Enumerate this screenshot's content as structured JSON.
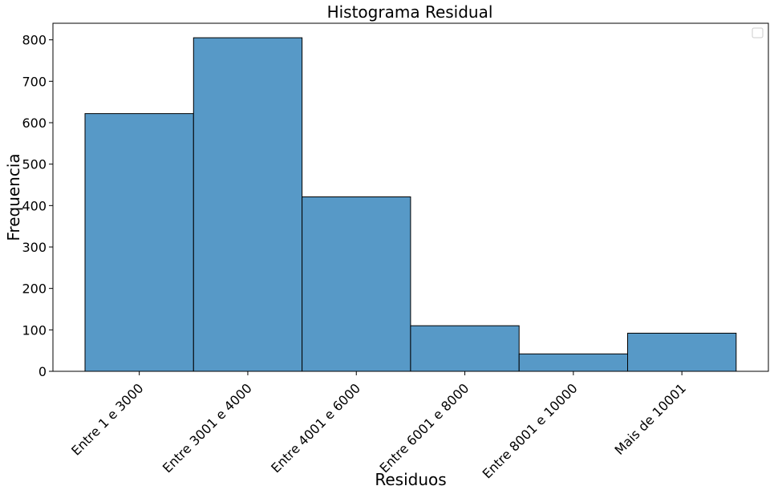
{
  "chart_data": {
    "type": "bar",
    "title": "Histograma Residual",
    "xlabel": "Residuos",
    "ylabel": "Frequencia",
    "categories": [
      "Entre 1 e 3000",
      "Entre 3001 e 4000",
      "Entre 4001 e 6000",
      "Entre 6001 e 8000",
      "Entre 8001 e 10000",
      "Mais de 10001"
    ],
    "values": [
      622,
      805,
      421,
      110,
      42,
      92
    ],
    "ylim": [
      0,
      840
    ],
    "yticks": [
      0,
      100,
      200,
      300,
      400,
      500,
      600,
      700,
      800
    ],
    "grid": false,
    "legend": "top-right (empty)",
    "bar_color": "#5799c7",
    "edge_color": "#000000"
  }
}
